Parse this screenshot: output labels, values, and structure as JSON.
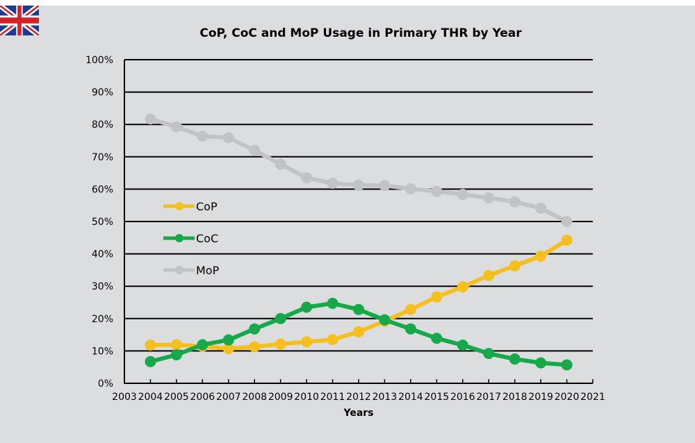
{
  "flag": {
    "name": "United Kingdom flag",
    "colors": {
      "blue": "#1f3a93",
      "red": "#d7202a",
      "white": "#ffffff"
    }
  },
  "chart_data": {
    "type": "line",
    "title": "CoP, CoC and MoP Usage in Primary THR by Year",
    "xlabel": "Years",
    "ylabel": "",
    "x": [
      2004,
      2005,
      2006,
      2007,
      2008,
      2009,
      2010,
      2011,
      2012,
      2013,
      2014,
      2015,
      2016,
      2017,
      2018,
      2019,
      2020
    ],
    "xlim": [
      2003,
      2021
    ],
    "x_ticks": [
      "2003",
      "2004",
      "2005",
      "2006",
      "2007",
      "2008",
      "2009",
      "2010",
      "2011",
      "2012",
      "2013",
      "2014",
      "2015",
      "2016",
      "2017",
      "2018",
      "2019",
      "2020",
      "2021"
    ],
    "ylim": [
      0,
      100
    ],
    "y_ticks": [
      "0%",
      "10%",
      "20%",
      "30%",
      "40%",
      "50%",
      "60%",
      "70%",
      "80%",
      "90%",
      "100%"
    ],
    "y_tick_values": [
      0,
      10,
      20,
      30,
      40,
      50,
      60,
      70,
      80,
      90,
      100
    ],
    "grid": "horizontal",
    "legend_position": "left-center",
    "series": [
      {
        "name": "CoP",
        "color": "#f5c01f",
        "values": [
          11.8,
          11.9,
          11.4,
          10.7,
          11.3,
          12.1,
          12.8,
          13.5,
          15.9,
          19.2,
          22.8,
          26.7,
          29.8,
          33.3,
          36.3,
          39.3,
          44.2
        ]
      },
      {
        "name": "CoC",
        "color": "#17a84a",
        "values": [
          6.7,
          8.8,
          11.9,
          13.4,
          16.8,
          20.0,
          23.5,
          24.7,
          22.8,
          19.6,
          16.8,
          13.9,
          11.8,
          9.2,
          7.5,
          6.3,
          5.7
        ]
      },
      {
        "name": "MoP",
        "color": "#c2c3c4",
        "values": [
          81.7,
          79.3,
          76.4,
          75.9,
          72.0,
          67.7,
          63.5,
          61.8,
          61.2,
          61.1,
          60.1,
          59.3,
          58.4,
          57.3,
          56.1,
          54.1,
          50.0
        ]
      }
    ]
  }
}
